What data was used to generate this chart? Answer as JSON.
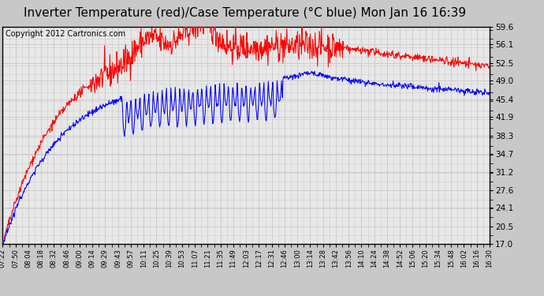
{
  "title": "Inverter Temperature (red)/Case Temperature (°C blue) Mon Jan 16 16:39",
  "copyright": "Copyright 2012 Cartronics.com",
  "ylim": [
    17.0,
    59.6
  ],
  "yticks": [
    17.0,
    20.5,
    24.1,
    27.6,
    31.2,
    34.7,
    38.3,
    41.9,
    45.4,
    49.0,
    52.5,
    56.1,
    59.6
  ],
  "bg_color": "#e8e8e8",
  "grid_color": "#cccccc",
  "title_fontsize": 11,
  "copyright_fontsize": 7,
  "x_labels": [
    "07:22",
    "07:50",
    "08:04",
    "08:18",
    "08:32",
    "08:46",
    "09:00",
    "09:14",
    "09:29",
    "09:43",
    "09:57",
    "10:11",
    "10:25",
    "10:39",
    "10:53",
    "11:07",
    "11:21",
    "11:35",
    "11:49",
    "12:03",
    "12:17",
    "12:31",
    "12:46",
    "13:00",
    "13:14",
    "13:28",
    "13:42",
    "13:56",
    "14:10",
    "14:24",
    "14:38",
    "14:52",
    "15:06",
    "15:20",
    "15:34",
    "15:48",
    "16:02",
    "16:16",
    "16:30"
  ]
}
